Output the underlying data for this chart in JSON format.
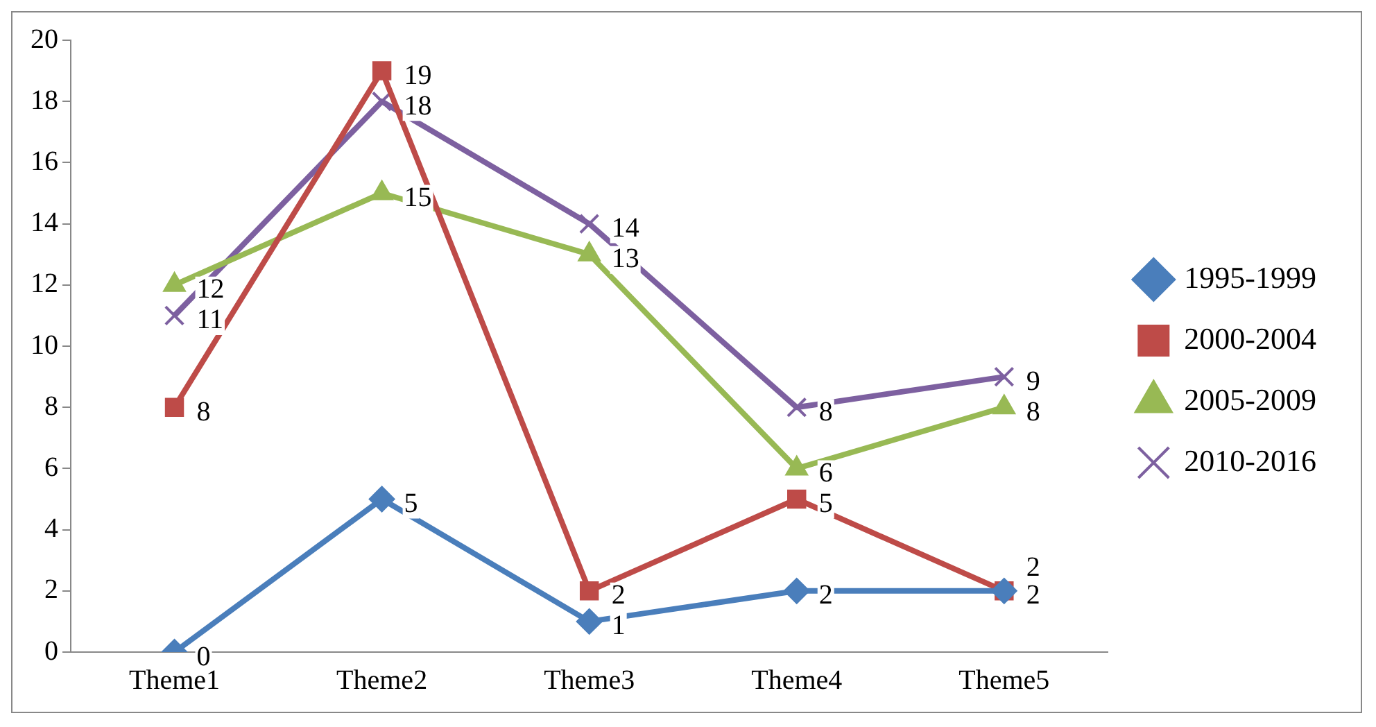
{
  "chart_data": {
    "type": "line",
    "categories": [
      "Theme1",
      "Theme2",
      "Theme3",
      "Theme4",
      "Theme5"
    ],
    "series": [
      {
        "name": "1995-1999",
        "color": "#4a7ebb",
        "marker": "diamond",
        "values": [
          0,
          5,
          1,
          2,
          2
        ]
      },
      {
        "name": "2000-2004",
        "color": "#be4b48",
        "marker": "square",
        "values": [
          8,
          19,
          2,
          5,
          2
        ]
      },
      {
        "name": "2005-2009",
        "color": "#98b954",
        "marker": "triangle",
        "values": [
          12,
          15,
          13,
          6,
          8
        ]
      },
      {
        "name": "2010-2016",
        "color": "#7d60a0",
        "marker": "cross",
        "values": [
          11,
          18,
          14,
          8,
          9
        ]
      }
    ],
    "ylim": [
      0,
      20
    ],
    "yticks": [
      0,
      2,
      4,
      6,
      8,
      10,
      12,
      14,
      16,
      18,
      20
    ],
    "grid": false,
    "legend": "right",
    "data_labels": true
  }
}
